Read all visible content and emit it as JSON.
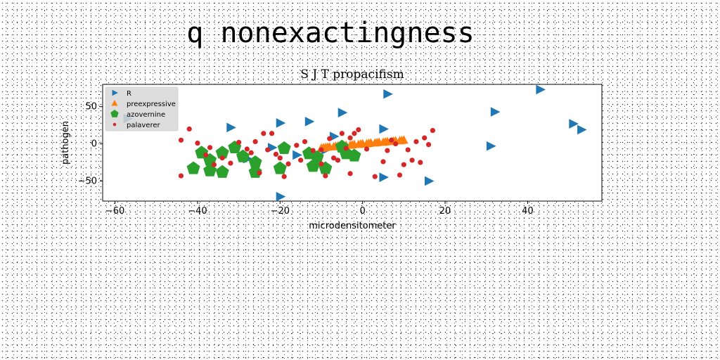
{
  "page_title": "q nonexactingness",
  "chart_data": {
    "type": "scatter",
    "title": "S J T propacifism",
    "xlabel": "microdensitometer",
    "ylabel": "pathogen",
    "xlim": [
      -63,
      58
    ],
    "ylim": [
      -77,
      80
    ],
    "xticks": [
      -60,
      -40,
      -20,
      0,
      20,
      40
    ],
    "yticks": [
      -50,
      0,
      50
    ],
    "grid": false,
    "legend_position": "top-left",
    "series": [
      {
        "name": "R",
        "marker": "triangle-right",
        "color": "#1f77b4",
        "points": [
          [
            -20,
            -71
          ],
          [
            -20,
            28
          ],
          [
            -13,
            30
          ],
          [
            -9,
            -8
          ],
          [
            -5,
            42
          ],
          [
            -7,
            10
          ],
          [
            -16,
            -15
          ],
          [
            -22,
            -5
          ],
          [
            -32,
            22
          ],
          [
            -28,
            -20
          ],
          [
            6,
            67
          ],
          [
            5,
            20
          ],
          [
            5,
            -45
          ],
          [
            16,
            -50
          ],
          [
            32,
            43
          ],
          [
            31,
            -3
          ],
          [
            43,
            73
          ],
          [
            51,
            27
          ],
          [
            53,
            19
          ],
          [
            -57,
            34
          ]
        ]
      },
      {
        "name": "preexpressive",
        "marker": "triangle-up",
        "color": "#ff7f0e",
        "points": [
          [
            -10,
            -6
          ],
          [
            -9,
            -5
          ],
          [
            -8,
            -4
          ],
          [
            -7,
            -4
          ],
          [
            -6,
            -3
          ],
          [
            -5,
            -3
          ],
          [
            -4,
            -2
          ],
          [
            -3,
            -2
          ],
          [
            -2,
            -1
          ],
          [
            -1,
            -1
          ],
          [
            0,
            0
          ],
          [
            1,
            0
          ],
          [
            2,
            1
          ],
          [
            3,
            1
          ],
          [
            4,
            2
          ],
          [
            5,
            2
          ],
          [
            6,
            3
          ],
          [
            7,
            3
          ],
          [
            8,
            4
          ],
          [
            9,
            4
          ],
          [
            10,
            5
          ],
          [
            -9.5,
            -5.5
          ],
          [
            -8.5,
            -4.5
          ],
          [
            -6.5,
            -3.5
          ],
          [
            -4.5,
            -2.5
          ],
          [
            -2.5,
            -1.5
          ],
          [
            -0.5,
            -0.5
          ],
          [
            1.5,
            0.5
          ],
          [
            3.5,
            1.5
          ],
          [
            5.5,
            2.5
          ],
          [
            7.5,
            3.5
          ],
          [
            9.5,
            4.5
          ]
        ]
      },
      {
        "name": "azovernine",
        "marker": "pentagon",
        "color": "#2ca02c",
        "points": [
          [
            -41,
            -33
          ],
          [
            -39,
            -12
          ],
          [
            -37,
            -36
          ],
          [
            -37,
            -22
          ],
          [
            -34,
            -38
          ],
          [
            -34,
            -12
          ],
          [
            -31,
            -5
          ],
          [
            -29,
            -17
          ],
          [
            -26,
            -25
          ],
          [
            -26,
            -38
          ],
          [
            -20,
            -33
          ],
          [
            -19,
            -6
          ],
          [
            -13,
            -13
          ],
          [
            -12,
            -30
          ],
          [
            -11,
            -18
          ],
          [
            -9,
            -33
          ],
          [
            -5,
            -4
          ],
          [
            -4,
            -13
          ],
          [
            -2,
            -16
          ]
        ]
      },
      {
        "name": "palaverer",
        "marker": "circle",
        "color": "#d62728",
        "points": [
          [
            -44,
            -43
          ],
          [
            -44,
            5
          ],
          [
            -42,
            20
          ],
          [
            -40,
            1
          ],
          [
            -38,
            -15
          ],
          [
            -37,
            -5
          ],
          [
            -36,
            -28
          ],
          [
            -34,
            -19
          ],
          [
            -32,
            -26
          ],
          [
            -30,
            2
          ],
          [
            -28,
            -7
          ],
          [
            -27,
            -12
          ],
          [
            -26,
            3
          ],
          [
            -25,
            -39
          ],
          [
            -24,
            14
          ],
          [
            -23,
            -8
          ],
          [
            -22,
            14
          ],
          [
            -21,
            -14
          ],
          [
            -20,
            -19
          ],
          [
            -19,
            -44
          ],
          [
            -18,
            -27
          ],
          [
            -16,
            -2
          ],
          [
            -15,
            -22
          ],
          [
            -14,
            3
          ],
          [
            -12,
            -9
          ],
          [
            -10,
            -8
          ],
          [
            -10,
            -27
          ],
          [
            -9,
            -43
          ],
          [
            -8,
            7
          ],
          [
            -7,
            -19
          ],
          [
            -6,
            -22
          ],
          [
            -5,
            14
          ],
          [
            -4,
            -6
          ],
          [
            -3,
            -40
          ],
          [
            -3,
            8
          ],
          [
            -2,
            14
          ],
          [
            -1,
            19
          ],
          [
            1,
            -7
          ],
          [
            3,
            -44
          ],
          [
            5,
            -24
          ],
          [
            6,
            -9
          ],
          [
            7,
            5
          ],
          [
            8,
            0
          ],
          [
            9,
            -42
          ],
          [
            10,
            -28
          ],
          [
            11,
            -8
          ],
          [
            12,
            -22
          ],
          [
            13,
            3
          ],
          [
            14,
            -25
          ],
          [
            15,
            8
          ],
          [
            16,
            -1
          ],
          [
            17,
            18
          ]
        ]
      }
    ]
  }
}
